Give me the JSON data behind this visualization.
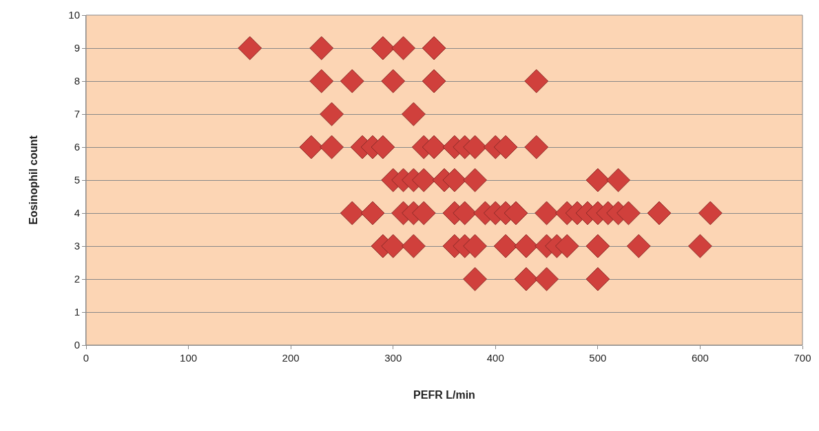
{
  "chart_data": {
    "type": "scatter",
    "xlabel": "PEFR L/min",
    "ylabel": "Eosinophil count",
    "x": [
      160,
      230,
      290,
      310,
      340,
      230,
      260,
      300,
      340,
      440,
      240,
      320,
      220,
      240,
      270,
      280,
      290,
      330,
      340,
      360,
      370,
      380,
      400,
      410,
      440,
      300,
      310,
      320,
      330,
      350,
      360,
      380,
      500,
      520,
      260,
      280,
      310,
      320,
      330,
      360,
      370,
      390,
      400,
      410,
      420,
      450,
      470,
      480,
      490,
      500,
      510,
      520,
      530,
      560,
      610,
      290,
      300,
      320,
      360,
      370,
      380,
      410,
      430,
      450,
      460,
      470,
      500,
      540,
      600,
      380,
      430,
      450,
      500
    ],
    "values": [
      9,
      9,
      9,
      9,
      9,
      8,
      8,
      8,
      8,
      8,
      7,
      7,
      6,
      6,
      6,
      6,
      6,
      6,
      6,
      6,
      6,
      6,
      6,
      6,
      6,
      5,
      5,
      5,
      5,
      5,
      5,
      5,
      5,
      5,
      4,
      4,
      4,
      4,
      4,
      4,
      4,
      4,
      4,
      4,
      4,
      4,
      4,
      4,
      4,
      4,
      4,
      4,
      4,
      4,
      4,
      3,
      3,
      3,
      3,
      3,
      3,
      3,
      3,
      3,
      3,
      3,
      3,
      3,
      3,
      2,
      2,
      2,
      2
    ],
    "color": "#d0403c",
    "marker": "diamond",
    "grid": "y",
    "xlim": [
      0,
      700
    ],
    "xticks": [
      0,
      100,
      200,
      300,
      400,
      500,
      600,
      700
    ],
    "ylim": [
      0,
      10
    ],
    "yticks": [
      0,
      1,
      2,
      3,
      4,
      5,
      6,
      7,
      8,
      9,
      10
    ]
  }
}
